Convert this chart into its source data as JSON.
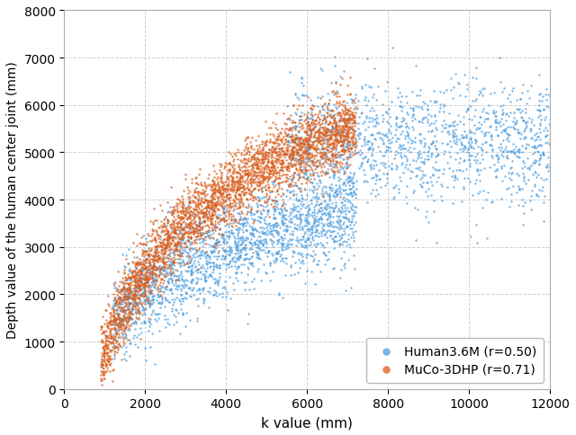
{
  "title": "",
  "xlabel": "k value (mm)",
  "ylabel": "Depth value of the human center joint (mm)",
  "xlim": [
    0,
    12000
  ],
  "ylim": [
    0,
    8000
  ],
  "xticks": [
    0,
    2000,
    4000,
    6000,
    8000,
    10000,
    12000
  ],
  "yticks": [
    0,
    1000,
    2000,
    3000,
    4000,
    5000,
    6000,
    7000,
    8000
  ],
  "color_human": "#4C9EE0",
  "color_muco": "#D95C1A",
  "legend_human": "Human3.6M (r=0.50)",
  "legend_muco": "MuCo-3DHP (r=0.71)",
  "point_size": 3,
  "alpha_human": 0.75,
  "alpha_muco": 0.75,
  "background_color": "#ffffff",
  "grid_color": "#d0d0d0",
  "n_human": 3500,
  "n_muco": 3500,
  "seed": 7
}
